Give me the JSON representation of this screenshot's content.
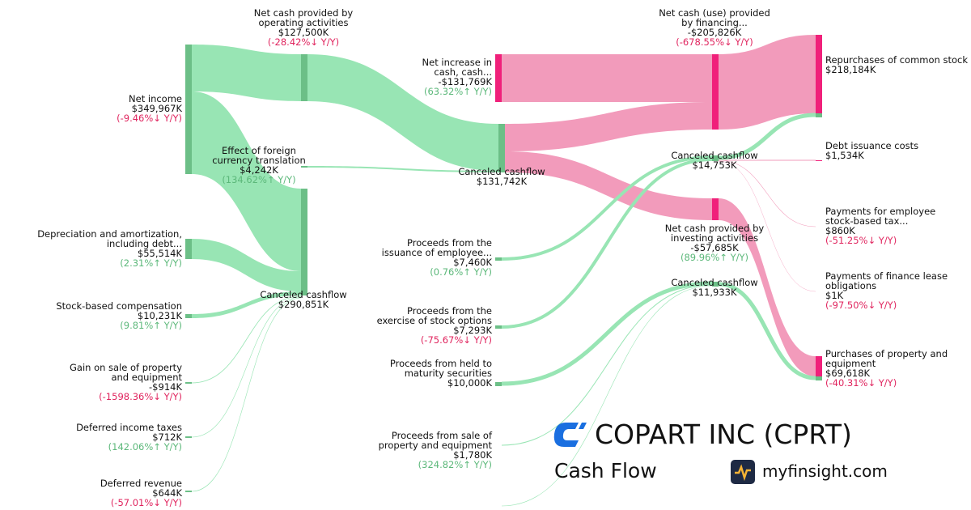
{
  "nodes": [
    {
      "name": "Net income",
      "value": "$349,967K",
      "change": "(-9.46%↓ Y/Y)"
    },
    {
      "name": "Net cash provided by operating activities",
      "value": "$127,500K",
      "change": "(-28.42%↓ Y/Y)"
    },
    {
      "name": "Effect of foreign currency translation",
      "value": "$4,242K",
      "change": "(134.62%↑ Y/Y)"
    },
    {
      "name": "Canceled cashflow",
      "value": "$290,851K"
    },
    {
      "name": "Depreciation and amortization, including debt...",
      "value": "$55,514K",
      "change": "(2.31%↑ Y/Y)"
    },
    {
      "name": "Stock-based compensation",
      "value": "$10,231K",
      "change": "(9.81%↑ Y/Y)"
    },
    {
      "name": "Gain on sale of property and equipment",
      "value": "-$914K",
      "change": "(-1598.36%↓ Y/Y)"
    },
    {
      "name": "Deferred income taxes",
      "value": "$712K",
      "change": "(142.06%↑ Y/Y)"
    },
    {
      "name": "Deferred revenue",
      "value": "$644K",
      "change": "(-57.01%↓ Y/Y)"
    },
    {
      "name": "Net increase in cash, cash...",
      "value": "-$131,769K",
      "change": "(63.32%↑ Y/Y)"
    },
    {
      "name": "Canceled cashflow",
      "value": "$131,742K"
    },
    {
      "name": "Proceeds from the issuance of employee...",
      "value": "$7,460K",
      "change": "(0.76%↑ Y/Y)"
    },
    {
      "name": "Proceeds from the exercise of stock options",
      "value": "$7,293K",
      "change": "(-75.67%↓ Y/Y)"
    },
    {
      "name": "Proceeds from held to maturity securities",
      "value": "$10,000K"
    },
    {
      "name": "Proceeds from sale of property and equipment",
      "value": "$1,780K",
      "change": "(324.82%↑ Y/Y)"
    },
    {
      "name": "Net cash (use) provided by financing...",
      "value": "-$205,826K",
      "change": "(-678.55%↓ Y/Y)"
    },
    {
      "name": "Canceled cashflow",
      "value": "$14,753K"
    },
    {
      "name": "Net cash provided by investing activities",
      "value": "-$57,685K",
      "change": "(89.96%↑ Y/Y)"
    },
    {
      "name": "Canceled cashflow",
      "value": "$11,933K"
    },
    {
      "name": "Repurchases of common stock",
      "value": "$218,184K"
    },
    {
      "name": "Debt issuance costs",
      "value": "$1,534K"
    },
    {
      "name": "Payments for employee stock-based tax...",
      "value": "$860K",
      "change": "(-51.25%↓ Y/Y)"
    },
    {
      "name": "Payments of finance lease obligations",
      "value": "$1K",
      "change": "(-97.50%↓ Y/Y)"
    },
    {
      "name": "Purchases of property and equipment",
      "value": "$69,618K",
      "change": "(-40.31%↓ Y/Y)"
    }
  ],
  "branding": {
    "company": "COPART INC (CPRT)",
    "subtitle": "Cash Flow",
    "site": "myfinsight.com"
  }
}
